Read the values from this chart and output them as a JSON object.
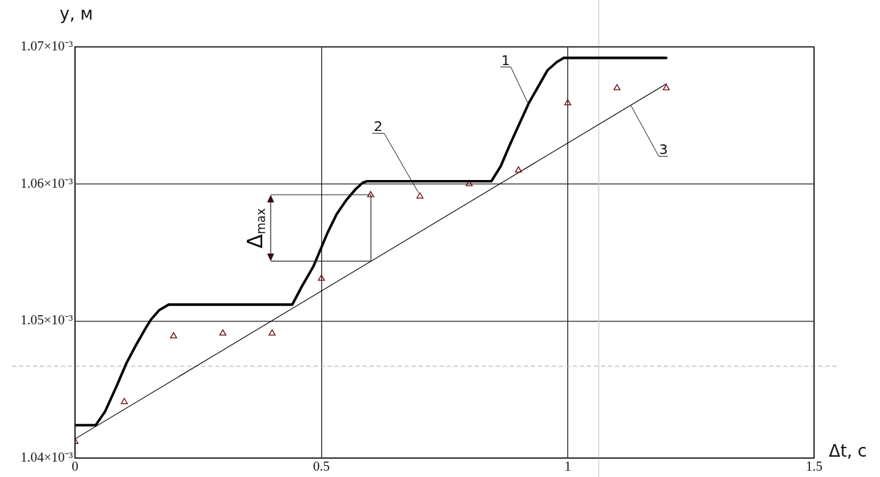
{
  "chart_data": {
    "type": "line",
    "xlabel": "Δt, с",
    "ylabel": "y, м",
    "xlim": [
      0,
      1.5
    ],
    "xticks": [
      0,
      0.5,
      1,
      1.5
    ],
    "ylim": [
      0.00104,
      0.00107
    ],
    "yticks": [
      {
        "value": 0.00104,
        "label": "1.04×10⁻³"
      },
      {
        "value": 0.00105,
        "label": "1.05×10⁻³"
      },
      {
        "value": 0.00106,
        "label": "1.06×10⁻³"
      },
      {
        "value": 0.00107,
        "label": "1.07×10⁻³"
      }
    ],
    "grid": true,
    "series": [
      {
        "name": "1",
        "type": "line",
        "color": "#000000",
        "marker": "none",
        "x": [
          0,
          0.042,
          0.061,
          0.085,
          0.104,
          0.123,
          0.142,
          0.154,
          0.171,
          0.19,
          0.441,
          0.46,
          0.484,
          0.498,
          0.512,
          0.531,
          0.55,
          0.569,
          0.584,
          0.593,
          0.845,
          0.864,
          0.883,
          0.902,
          0.921,
          0.94,
          0.959,
          0.978,
          0.992,
          1.2
        ],
        "values": [
          0.0010424,
          0.0010424,
          0.0010434,
          0.0010453,
          0.0010469,
          0.0010482,
          0.0010494,
          0.0010501,
          0.0010508,
          0.0010512,
          0.0010512,
          0.0010525,
          0.001054,
          0.0010552,
          0.0010564,
          0.0010578,
          0.0010588,
          0.0010596,
          0.0010601,
          0.0010602,
          0.0010602,
          0.0010613,
          0.0010629,
          0.0010644,
          0.0010659,
          0.0010671,
          0.0010683,
          0.0010689,
          0.0010692,
          0.0010692
        ]
      },
      {
        "name": "2",
        "type": "scatter",
        "color": "#6e0b0b",
        "marker": "triangle",
        "x": [
          0,
          0.1,
          0.2,
          0.3,
          0.4,
          0.5,
          0.6,
          0.7,
          0.8,
          0.9,
          1,
          1.1,
          1.2
        ],
        "values": [
          0.0010412,
          0.0010441,
          0.0010489,
          0.0010491,
          0.0010491,
          0.0010531,
          0.0010592,
          0.0010591,
          0.00106,
          0.001061,
          0.0010659,
          0.001067,
          0.001067
        ]
      },
      {
        "name": "3",
        "type": "line",
        "color": "#000000",
        "marker": "none",
        "x": [
          0,
          1.2
        ],
        "values": [
          0.0010414,
          0.0010673
        ]
      }
    ],
    "annotations": [
      {
        "text": "Δ$_{max}$",
        "x": 0.6,
        "y": 0.0010592
      }
    ],
    "ref_lines": [
      {
        "axis": "x",
        "value": 1.063,
        "color": "#cccccc",
        "line_style": "solid"
      },
      {
        "axis": "y",
        "value": 0.0010467,
        "color": "#bbbbbb",
        "line_style": "dashed"
      }
    ]
  }
}
